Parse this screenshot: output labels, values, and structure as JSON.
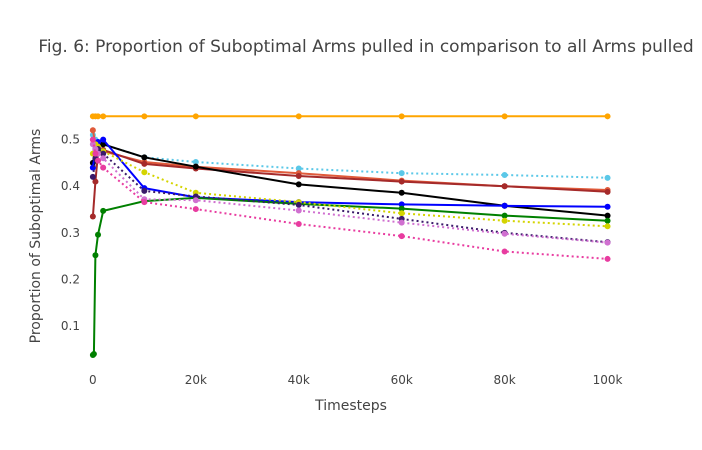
{
  "chart_data": {
    "type": "line",
    "title": "Fig. 6: Proportion of Suboptimal Arms pulled in comparison to all Arms pulled",
    "xlabel": "Timesteps",
    "ylabel": "Proportion of Suboptimal Arms",
    "xlim": [
      -2500,
      103000
    ],
    "ylim": [
      0.01,
      0.585
    ],
    "x_ticks": [
      0,
      20000,
      40000,
      60000,
      80000,
      100000
    ],
    "x_tick_labels": [
      "0",
      "20k",
      "40k",
      "60k",
      "80k",
      "100k"
    ],
    "y_ticks": [
      0.1,
      0.2,
      0.3,
      0.4,
      0.5
    ],
    "y_tick_labels": [
      "0.1",
      "0.2",
      "0.3",
      "0.4",
      "0.5"
    ],
    "grid": false,
    "legend": "none",
    "series": [
      {
        "color": "#ffa500",
        "dash": "solid",
        "x": [
          0,
          500,
          1000,
          2000,
          10000,
          20000,
          40000,
          60000,
          80000,
          100000
        ],
        "y": [
          0.55,
          0.55,
          0.55,
          0.55,
          0.55,
          0.55,
          0.55,
          0.55,
          0.55,
          0.55
        ]
      },
      {
        "color": "#5bc8e8",
        "dash": "dot",
        "x": [
          0,
          500,
          1000,
          2000,
          10000,
          20000,
          40000,
          60000,
          80000,
          100000
        ],
        "y": [
          0.51,
          0.5,
          0.495,
          0.49,
          0.462,
          0.452,
          0.438,
          0.428,
          0.424,
          0.418
        ]
      },
      {
        "color": "#e05a3a",
        "dash": "solid",
        "x": [
          0,
          500,
          1000,
          2000,
          10000,
          20000,
          40000,
          60000,
          80000,
          100000
        ],
        "y": [
          0.52,
          0.49,
          0.485,
          0.475,
          0.452,
          0.442,
          0.428,
          0.412,
          0.4,
          0.392
        ]
      },
      {
        "color": "#a52a2a",
        "dash": "solid",
        "x": [
          0,
          500,
          1000,
          2000,
          10000,
          20000,
          40000,
          60000,
          80000,
          100000
        ],
        "y": [
          0.335,
          0.41,
          0.47,
          0.478,
          0.448,
          0.438,
          0.422,
          0.41,
          0.4,
          0.388
        ]
      },
      {
        "color": "#000000",
        "dash": "solid",
        "x": [
          0,
          500,
          1000,
          2000,
          10000,
          20000,
          40000,
          60000,
          80000,
          100000
        ],
        "y": [
          0.45,
          0.48,
          0.49,
          0.49,
          0.462,
          0.442,
          0.404,
          0.386,
          0.358,
          0.337
        ]
      },
      {
        "color": "#0000ff",
        "dash": "solid",
        "x": [
          0,
          500,
          1000,
          2000,
          10000,
          20000,
          40000,
          60000,
          80000,
          100000
        ],
        "y": [
          0.44,
          0.48,
          0.495,
          0.5,
          0.396,
          0.376,
          0.366,
          0.361,
          0.358,
          0.356
        ]
      },
      {
        "color": "#008000",
        "dash": "solid",
        "x": [
          0,
          200,
          500,
          1000,
          2000,
          10000,
          20000,
          40000,
          60000,
          80000,
          100000
        ],
        "y": [
          0.038,
          0.04,
          0.252,
          0.296,
          0.347,
          0.368,
          0.375,
          0.362,
          0.352,
          0.337,
          0.326
        ]
      },
      {
        "color": "#d4d400",
        "dash": "dot",
        "x": [
          0,
          500,
          1000,
          2000,
          10000,
          20000,
          40000,
          60000,
          80000,
          100000
        ],
        "y": [
          0.47,
          0.49,
          0.485,
          0.475,
          0.43,
          0.386,
          0.366,
          0.342,
          0.326,
          0.314
        ]
      },
      {
        "color": "#3a1a6a",
        "dash": "dot",
        "x": [
          0,
          500,
          1000,
          2000,
          10000,
          20000,
          40000,
          60000,
          80000,
          100000
        ],
        "y": [
          0.42,
          0.46,
          0.48,
          0.47,
          0.39,
          0.378,
          0.36,
          0.33,
          0.3,
          0.28
        ]
      },
      {
        "color": "#d070d0",
        "dash": "dot",
        "x": [
          0,
          500,
          1000,
          2000,
          10000,
          20000,
          40000,
          60000,
          80000,
          100000
        ],
        "y": [
          0.49,
          0.48,
          0.47,
          0.46,
          0.372,
          0.37,
          0.348,
          0.322,
          0.298,
          0.279
        ]
      },
      {
        "color": "#e83ca0",
        "dash": "dot",
        "x": [
          0,
          500,
          1000,
          2000,
          10000,
          20000,
          40000,
          60000,
          80000,
          100000
        ],
        "y": [
          0.5,
          0.47,
          0.455,
          0.44,
          0.366,
          0.351,
          0.319,
          0.293,
          0.26,
          0.244
        ]
      }
    ]
  }
}
